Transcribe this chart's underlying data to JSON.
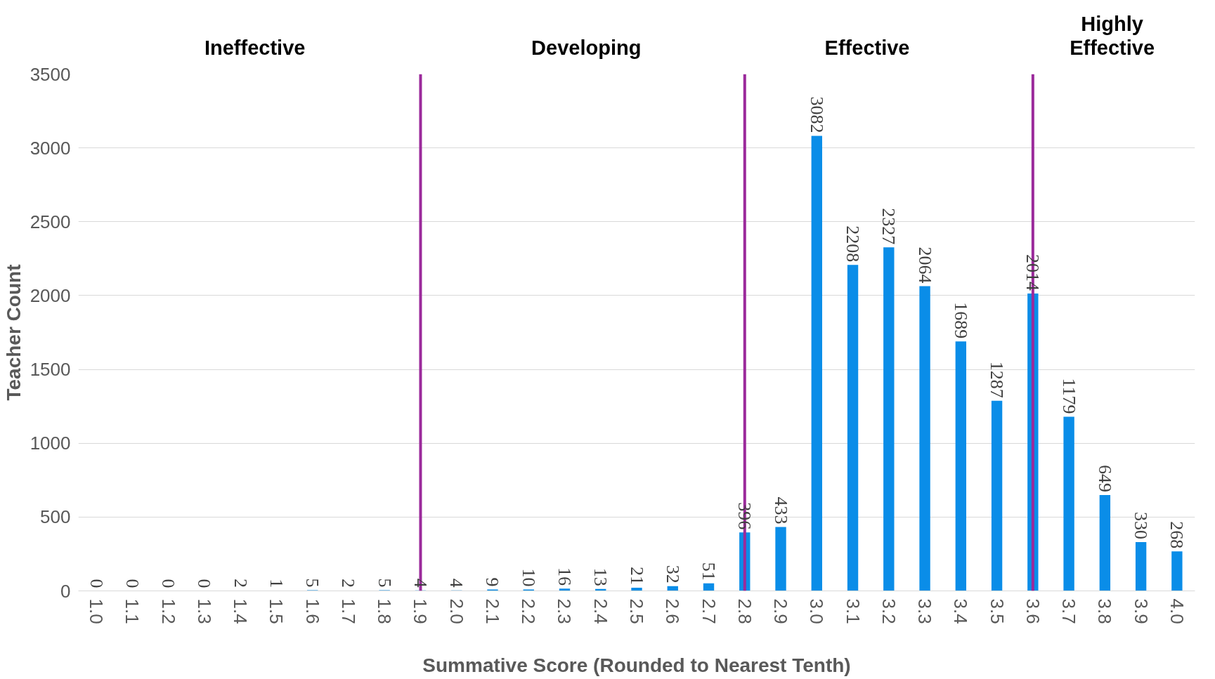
{
  "chart_data": {
    "type": "bar",
    "xlabel": "Summative Score (Rounded to Nearest Tenth)",
    "ylabel": "Teacher Count",
    "categories": [
      "1.0",
      "1.1",
      "1.2",
      "1.3",
      "1.4",
      "1.5",
      "1.6",
      "1.7",
      "1.8",
      "1.9",
      "2.0",
      "2.1",
      "2.2",
      "2.3",
      "2.4",
      "2.5",
      "2.6",
      "2.7",
      "2.8",
      "2.9",
      "3.0",
      "3.1",
      "3.2",
      "3.3",
      "3.4",
      "3.5",
      "3.6",
      "3.7",
      "3.8",
      "3.9",
      "4.0"
    ],
    "values": [
      0,
      0,
      0,
      0,
      2,
      1,
      5,
      2,
      5,
      4,
      4,
      9,
      10,
      16,
      13,
      21,
      32,
      51,
      396,
      433,
      3082,
      2208,
      2327,
      2064,
      1689,
      1287,
      2014,
      1179,
      649,
      330,
      268
    ],
    "color": "#0a8de8",
    "ylim": [
      0,
      3500
    ],
    "yticks": [
      0,
      500,
      1000,
      1500,
      2000,
      2500,
      3000,
      3500
    ],
    "grid": "y",
    "data_labels": true,
    "ref_lines": [
      {
        "axis": "x",
        "value": "1.9",
        "color": "#9b2a9b"
      },
      {
        "axis": "x",
        "value": "2.8",
        "color": "#9b2a9b"
      },
      {
        "axis": "x",
        "value": "3.6",
        "color": "#9b2a9b"
      }
    ],
    "annotations": [
      "Ineffective",
      "Developing",
      "Effective",
      "Highly Effective"
    ]
  }
}
